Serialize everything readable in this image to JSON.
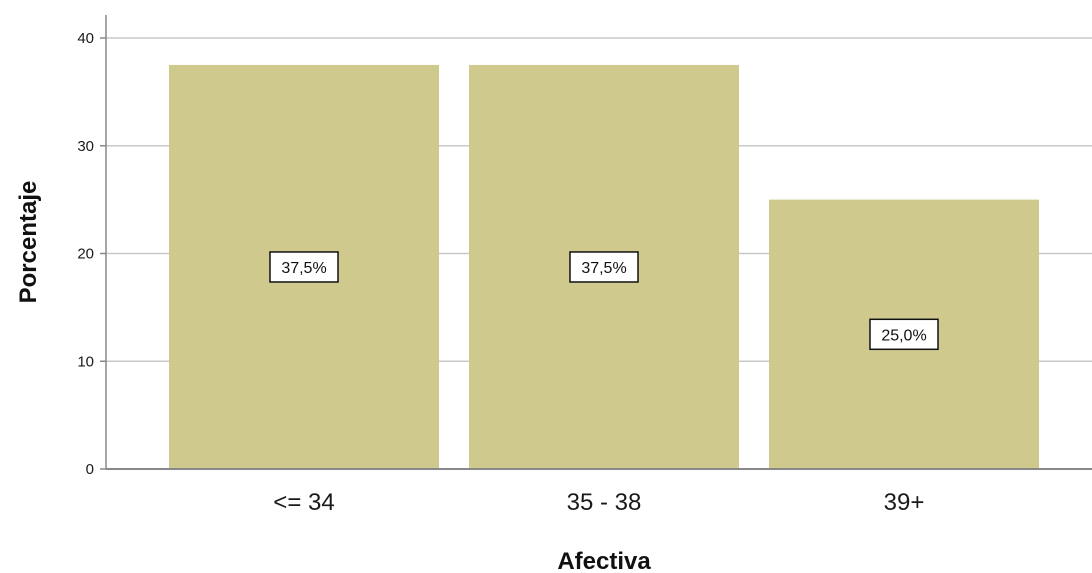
{
  "chart_data": {
    "type": "bar",
    "categories": [
      "<= 34",
      "35 - 38",
      "39+"
    ],
    "values": [
      37.5,
      37.5,
      25.0
    ],
    "data_labels": [
      "37,5%",
      "37,5%",
      "25,0%"
    ],
    "xlabel": "Afectiva",
    "ylabel": "Porcentaje",
    "ylim": [
      0,
      40
    ],
    "yticks": [
      0,
      10,
      20,
      30,
      40
    ],
    "ytick_labels": [
      "0",
      "10",
      "20",
      "30",
      "40"
    ],
    "grid": true,
    "bar_color": "#cfc98e",
    "grid_color": "#c8c8c8",
    "axis_color": "#888888"
  }
}
